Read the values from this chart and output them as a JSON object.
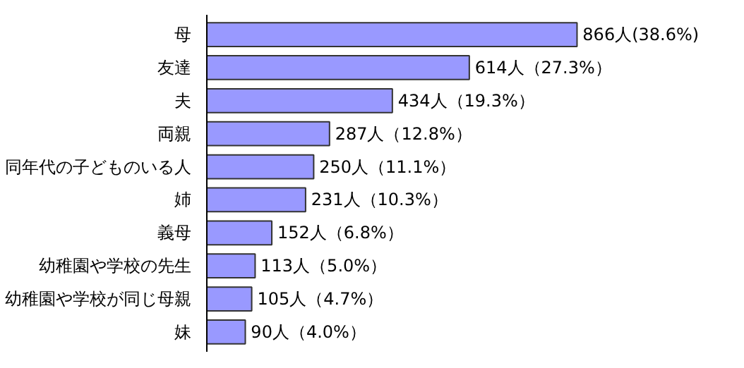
{
  "chart_data": {
    "type": "bar",
    "orientation": "horizontal",
    "categories": [
      "母",
      "友達",
      "夫",
      "両親",
      "同年代の子どものいる人",
      "姉",
      "義母",
      "幼稚園や学校の先生",
      "幼稚園や学校が同じ母親",
      "妹"
    ],
    "values": [
      866,
      614,
      434,
      287,
      250,
      231,
      152,
      113,
      105,
      90
    ],
    "value_labels": [
      "866人(38.6%)",
      "614人（27.3%）",
      "434人（19.3%）",
      "287人（12.8%）",
      "250人（11.1%）",
      "231人（10.3%）",
      "152人（6.8%）",
      "113人（5.0%）",
      "105人（4.7%）",
      "90人（4.0%）"
    ],
    "color": "#9999ff"
  }
}
